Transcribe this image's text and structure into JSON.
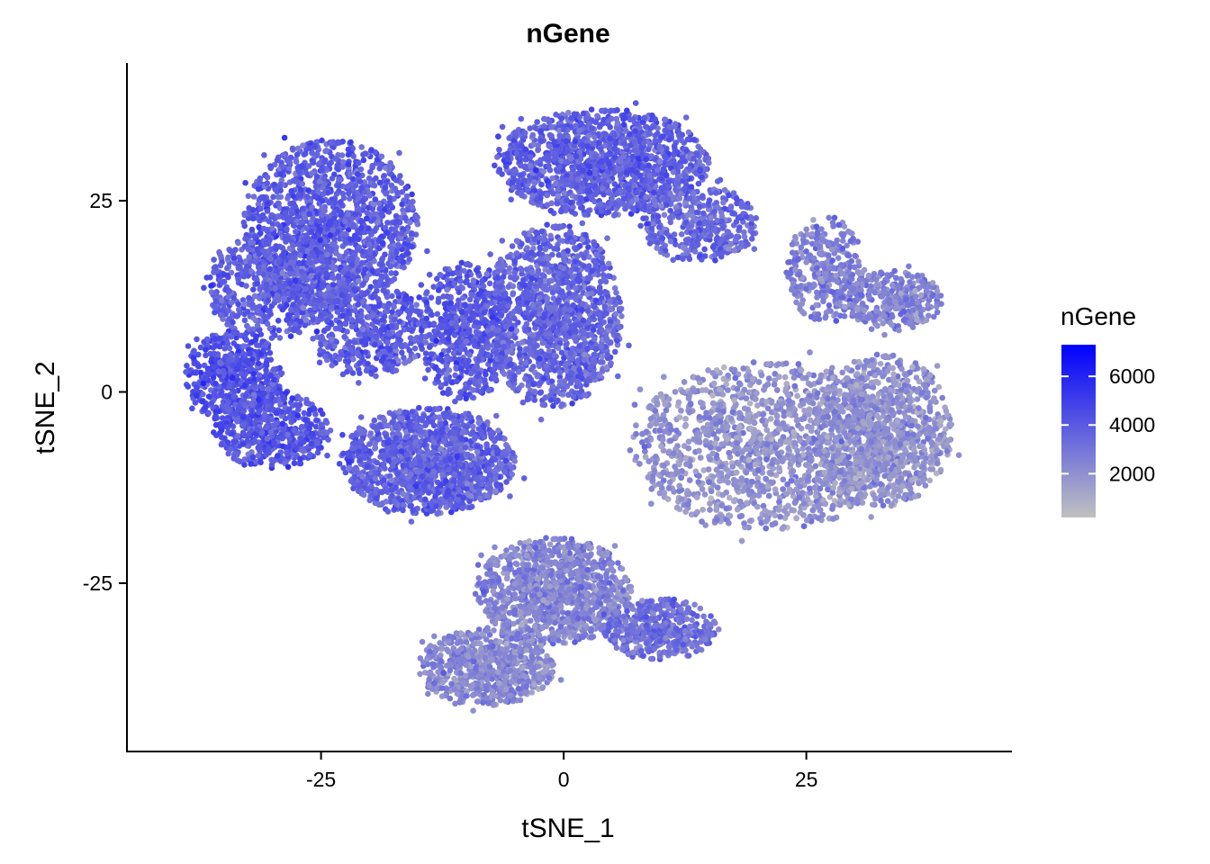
{
  "chart_data": {
    "type": "scatter",
    "title": "nGene",
    "xlabel": "tSNE_1",
    "ylabel": "tSNE_2",
    "xlim": [
      -45,
      46
    ],
    "ylim": [
      -47,
      43
    ],
    "x_ticks": [
      {
        "value": -25,
        "label": "-25"
      },
      {
        "value": 0,
        "label": "0"
      },
      {
        "value": 25,
        "label": "25"
      }
    ],
    "y_ticks": [
      {
        "value": 25,
        "label": "25"
      },
      {
        "value": 0,
        "label": "0"
      },
      {
        "value": -25,
        "label": "-25"
      }
    ],
    "grid": false,
    "legend": {
      "title": "nGene",
      "position": "right",
      "type": "continuous",
      "range": [
        200,
        7300
      ],
      "ticks": [
        {
          "value": 2000,
          "label": "2000"
        },
        {
          "value": 4000,
          "label": "4000"
        },
        {
          "value": 6000,
          "label": "6000"
        }
      ],
      "low_color": "#c0c0c0",
      "high_color": "#0000ff"
    },
    "clusters": [
      {
        "cx": -24,
        "cy": 22,
        "rx": 9,
        "ry": 11,
        "n": 1400,
        "mean": 3900
      },
      {
        "cx": -30,
        "cy": 14,
        "rx": 7,
        "ry": 7,
        "n": 600,
        "mean": 3800
      },
      {
        "cx": -34,
        "cy": 2,
        "rx": 5,
        "ry": 6,
        "n": 500,
        "mean": 4300
      },
      {
        "cx": -30,
        "cy": -5,
        "rx": 6,
        "ry": 5,
        "n": 500,
        "mean": 4200
      },
      {
        "cx": -20,
        "cy": 8,
        "rx": 6,
        "ry": 6,
        "n": 450,
        "mean": 3900
      },
      {
        "cx": -14,
        "cy": -9,
        "rx": 9,
        "ry": 7,
        "n": 1300,
        "mean": 3700
      },
      {
        "cx": -10,
        "cy": 8,
        "rx": 5,
        "ry": 9,
        "n": 600,
        "mean": 4000
      },
      {
        "cx": -1,
        "cy": 10,
        "rx": 7,
        "ry": 12,
        "n": 1300,
        "mean": 3600
      },
      {
        "cx": 4,
        "cy": 30,
        "rx": 11,
        "ry": 7,
        "n": 1600,
        "mean": 3800
      },
      {
        "cx": 14,
        "cy": 22,
        "rx": 6,
        "ry": 5,
        "n": 400,
        "mean": 3400
      },
      {
        "cx": 21,
        "cy": -7,
        "rx": 14,
        "ry": 11,
        "n": 2700,
        "mean": 1900
      },
      {
        "cx": 33,
        "cy": -5,
        "rx": 7,
        "ry": 10,
        "n": 900,
        "mean": 2000
      },
      {
        "cx": 27,
        "cy": 16,
        "rx": 4,
        "ry": 7,
        "n": 350,
        "mean": 2600
      },
      {
        "cx": 34,
        "cy": 12,
        "rx": 5,
        "ry": 4,
        "n": 300,
        "mean": 2500
      },
      {
        "cx": -1,
        "cy": -26,
        "rx": 8,
        "ry": 7,
        "n": 1100,
        "mean": 2400
      },
      {
        "cx": -8,
        "cy": -36,
        "rx": 7,
        "ry": 5,
        "n": 700,
        "mean": 2300
      },
      {
        "cx": 10,
        "cy": -31,
        "rx": 6,
        "ry": 4,
        "n": 450,
        "mean": 3200
      }
    ]
  }
}
